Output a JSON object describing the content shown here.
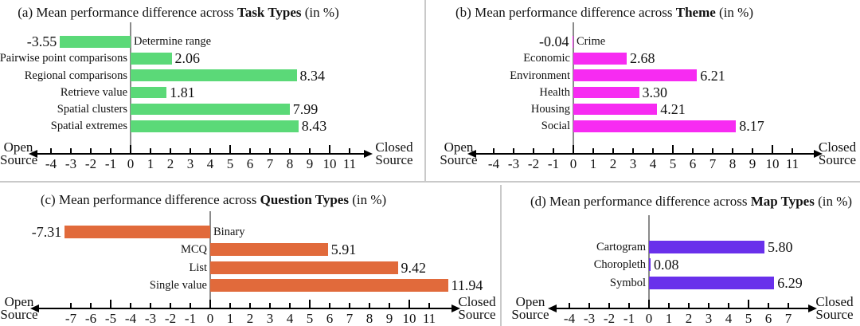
{
  "chart_data": [
    {
      "type": "bar",
      "panel": "a",
      "title": {
        "prefix": "(a) Mean performance difference across ",
        "bold": "Task Types",
        "suffix": " (in %)"
      },
      "categories": [
        "Determine range",
        "Pairwise point comparisons",
        "Regional comparisons",
        "Retrieve value",
        "Spatial clusters",
        "Spatial extremes"
      ],
      "values": [
        -3.55,
        2.06,
        8.34,
        1.81,
        7.99,
        8.43
      ],
      "value_labels": [
        "-3.55",
        "2.06",
        "8.34",
        "1.81",
        "7.99",
        "8.43"
      ],
      "bar_color": "#5BD978",
      "axis": {
        "ticks": [
          -4,
          -3,
          -2,
          -1,
          0,
          1,
          2,
          3,
          4,
          5,
          6,
          7,
          8,
          9,
          10,
          11
        ],
        "xlim": [
          -4,
          11
        ],
        "left_label": [
          "Open",
          "Source"
        ],
        "right_label": [
          "Closed",
          "Source"
        ]
      }
    },
    {
      "type": "bar",
      "panel": "b",
      "title": {
        "prefix": "(b) Mean performance difference across ",
        "bold": "Theme",
        "suffix": " (in %)"
      },
      "categories": [
        "Crime",
        "Economic",
        "Environment",
        "Health",
        "Housing",
        "Social"
      ],
      "values": [
        -0.04,
        2.68,
        6.21,
        3.3,
        4.21,
        8.17
      ],
      "value_labels": [
        "-0.04",
        "2.68",
        "6.21",
        "3.30",
        "4.21",
        "8.17"
      ],
      "bar_color": "#F72BF2",
      "axis": {
        "ticks": [
          -4,
          -3,
          -2,
          -1,
          0,
          1,
          2,
          3,
          4,
          5,
          6,
          7,
          8,
          9,
          10,
          11
        ],
        "xlim": [
          -4,
          11
        ],
        "left_label": [
          "Open",
          "Source"
        ],
        "right_label": [
          "Closed",
          "Source"
        ]
      }
    },
    {
      "type": "bar",
      "panel": "c",
      "title": {
        "prefix": "(c) Mean performance difference across ",
        "bold": "Question Types",
        "suffix": " (in %)"
      },
      "categories": [
        "Binary",
        "MCQ",
        "List",
        "Single value"
      ],
      "values": [
        -7.31,
        5.91,
        9.42,
        11.94
      ],
      "value_labels": [
        "-7.31",
        "5.91",
        "9.42",
        "11.94"
      ],
      "bar_color": "#E16A3B",
      "axis": {
        "ticks": [
          -7,
          -6,
          -5,
          -4,
          -3,
          -2,
          -1,
          0,
          1,
          2,
          3,
          4,
          5,
          6,
          7,
          8,
          9,
          10,
          11
        ],
        "xlim": [
          -7,
          11
        ],
        "left_label": [
          "Open",
          "Source"
        ],
        "right_label": [
          "Closed",
          "Source"
        ]
      }
    },
    {
      "type": "bar",
      "panel": "d",
      "title": {
        "prefix": "(d) Mean performance difference across ",
        "bold": "Map Types",
        "suffix": " (in %)"
      },
      "categories": [
        "Cartogram",
        "Choropleth",
        "Symbol"
      ],
      "values": [
        5.8,
        0.08,
        6.29
      ],
      "value_labels": [
        "5.80",
        "0.08",
        "6.29"
      ],
      "bar_color": "#6930EB",
      "axis": {
        "ticks": [
          -4,
          -3,
          -2,
          -1,
          0,
          1,
          2,
          3,
          4,
          5,
          6,
          7
        ],
        "xlim": [
          -4,
          7
        ],
        "left_label": [
          "Open",
          "Source"
        ],
        "right_label": [
          "Closed",
          "Source"
        ]
      }
    }
  ]
}
